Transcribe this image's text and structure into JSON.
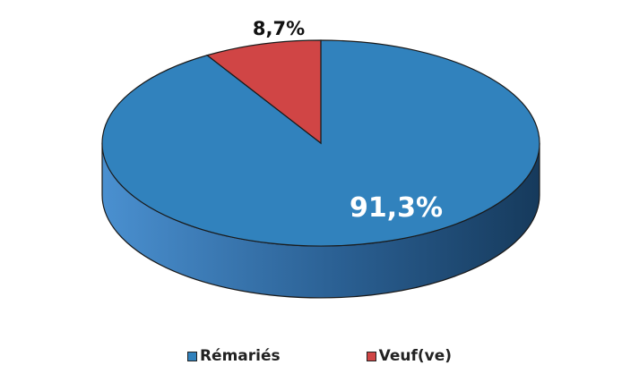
{
  "chart_data": {
    "type": "pie",
    "style": "3d",
    "categories": [
      "Rémariés",
      "Veuf(ve)"
    ],
    "values": [
      91.3,
      8.7
    ],
    "data_labels": [
      "91,3%",
      "8,7%"
    ],
    "colors": [
      "#3182bd",
      "#d04545"
    ],
    "legend_position": "bottom"
  }
}
